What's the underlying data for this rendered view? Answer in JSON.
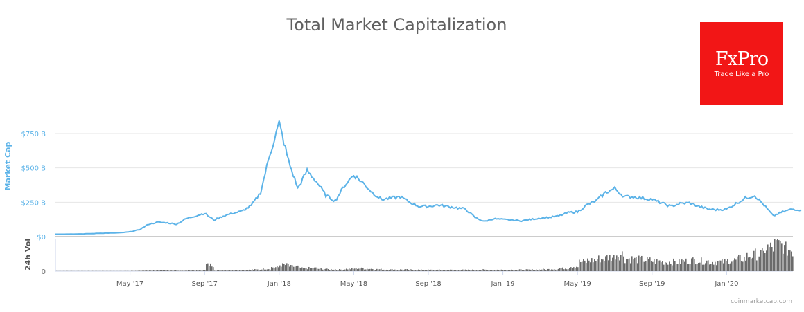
{
  "title": "Total Market Capitalization",
  "logo": {
    "brand": "FxPro",
    "tagline": "Trade Like a Pro"
  },
  "credit": "coinmarketcap.com",
  "chart_data": {
    "type": "line",
    "title": "Total Market Capitalization",
    "ylabel": "Market Cap",
    "ylabel2": "24h Vol",
    "yticks": [
      "$0",
      "$250 B",
      "$500 B",
      "$750 B"
    ],
    "ytick_values": [
      0,
      250,
      500,
      750
    ],
    "y2ticks": [
      "0"
    ],
    "ylim": [
      0,
      750
    ],
    "xticks": [
      "May '17",
      "Sep '17",
      "Jan '18",
      "May '18",
      "Sep '18",
      "Jan '19",
      "May '19",
      "Sep '19",
      "Jan '20"
    ],
    "xtick_months": [
      4,
      8,
      12,
      16,
      20,
      24,
      28,
      32,
      36
    ],
    "color": "#5cb3e8",
    "volume_color": "#6b6b6b",
    "x_months": "months since Jan 2017, half-month steps",
    "series": [
      {
        "name": "Market Cap (B USD)",
        "values": [
          18,
          18,
          19,
          20,
          22,
          25,
          26,
          28,
          35,
          50,
          90,
          105,
          100,
          90,
          130,
          150,
          170,
          120,
          150,
          170,
          185,
          225,
          320,
          600,
          825,
          550,
          350,
          480,
          400,
          300,
          260,
          370,
          450,
          390,
          320,
          270,
          280,
          290,
          250,
          220,
          220,
          230,
          220,
          210,
          200,
          140,
          110,
          130,
          125,
          120,
          115,
          125,
          135,
          140,
          150,
          175,
          180,
          230,
          260,
          320,
          350,
          290,
          290,
          280,
          270,
          245,
          220,
          240,
          245,
          220,
          200,
          195,
          200,
          240,
          280,
          300,
          230,
          150,
          180,
          200,
          195
        ]
      },
      {
        "name": "24h Vol (B USD)",
        "values": [
          1,
          1,
          1,
          1,
          1,
          1,
          1,
          1,
          2,
          3,
          4,
          5,
          4,
          3,
          4,
          5,
          40,
          4,
          5,
          6,
          8,
          10,
          15,
          25,
          40,
          30,
          18,
          20,
          15,
          12,
          10,
          14,
          18,
          15,
          12,
          10,
          10,
          10,
          9,
          8,
          8,
          8,
          8,
          8,
          8,
          10,
          9,
          9,
          9,
          9,
          9,
          10,
          12,
          14,
          18,
          30,
          60,
          70,
          80,
          90,
          110,
          80,
          75,
          70,
          65,
          60,
          60,
          65,
          70,
          65,
          60,
          60,
          70,
          80,
          100,
          110,
          150,
          170,
          140,
          130,
          120
        ]
      }
    ]
  }
}
